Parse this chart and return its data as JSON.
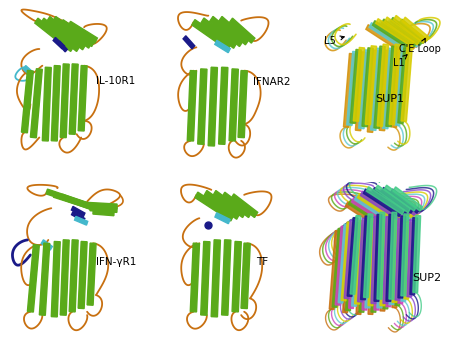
{
  "background_color": "#ffffff",
  "figsize": [
    4.74,
    3.63
  ],
  "dpi": 100,
  "panels": [
    {
      "label": "IL-10R1",
      "col": 0,
      "row": 0
    },
    {
      "label": "IFNAR2",
      "col": 1,
      "row": 0
    },
    {
      "label": "SUP1",
      "col": 2,
      "row": 0
    },
    {
      "label": "IFN-γR1",
      "col": 0,
      "row": 1
    },
    {
      "label": "TF",
      "col": 1,
      "row": 1
    },
    {
      "label": "SUP2",
      "col": 2,
      "row": 1
    }
  ],
  "green": "#5aaa1a",
  "orange": "#c87010",
  "navy": "#1a1a88",
  "cyan": "#44b8cc",
  "gold": "#d4920a",
  "purple": "#cc44bb",
  "yellow": "#d8cc00",
  "lavender": "#8844cc",
  "sup1_colors": [
    "#d4920a",
    "#5bc8d0",
    "#5aaa1a",
    "#d8cc00"
  ],
  "sup2_colors": [
    "#c87010",
    "#5aaa1a",
    "#cc44bb",
    "#5bc8d0",
    "#d8cc00",
    "#8844cc",
    "#1a1a88",
    "#44cc88"
  ]
}
